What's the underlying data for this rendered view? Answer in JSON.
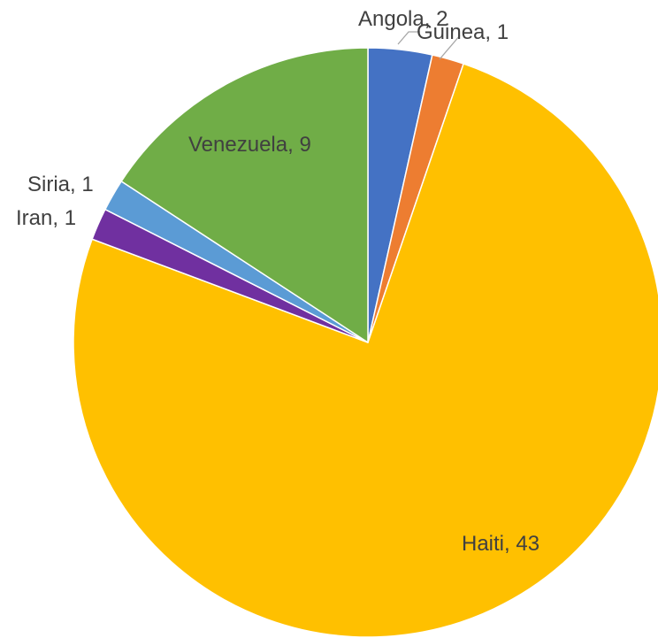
{
  "chart_data": {
    "type": "pie",
    "title": "",
    "start_angle_deg": 0,
    "direction": "clockwise",
    "legend": "none",
    "slices": [
      {
        "label": "Angola",
        "value": 2,
        "color": "#4472C4"
      },
      {
        "label": "Guinea",
        "value": 1,
        "color": "#ED7D31"
      },
      {
        "label": "Haiti",
        "value": 43,
        "color": "#FFC000"
      },
      {
        "label": "Iran",
        "value": 1,
        "color": "#7030A0"
      },
      {
        "label": "Siria",
        "value": 1,
        "color": "#5B9BD5"
      },
      {
        "label": "Venezuela",
        "value": 9,
        "color": "#70AD47"
      }
    ],
    "data_labels": [
      {
        "text": "Angola, 2",
        "leader_line": true
      },
      {
        "text": "Guinea, 1",
        "leader_line": true
      },
      {
        "text": "Haiti, 43",
        "leader_line": false
      },
      {
        "text": "Iran, 1",
        "leader_line": false
      },
      {
        "text": "Siria, 1",
        "leader_line": false
      },
      {
        "text": "Venezuela, 9",
        "leader_line": false
      }
    ]
  }
}
